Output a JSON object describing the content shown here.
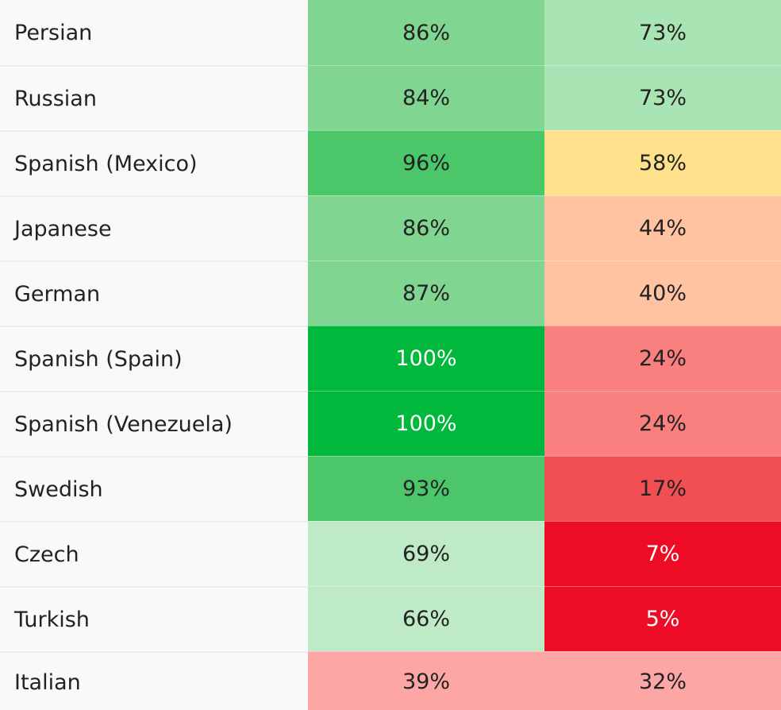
{
  "table": {
    "rows": [
      {
        "language": "Persian",
        "col1": {
          "value": "86%",
          "bg": "#80d690",
          "fg": "#222222"
        },
        "col2": {
          "value": "73%",
          "bg": "#a9e4b4",
          "fg": "#222222"
        }
      },
      {
        "language": "Russian",
        "col1": {
          "value": "84%",
          "bg": "#80d690",
          "fg": "#222222"
        },
        "col2": {
          "value": "73%",
          "bg": "#a9e4b4",
          "fg": "#222222"
        }
      },
      {
        "language": "Spanish (Mexico)",
        "col1": {
          "value": "96%",
          "bg": "#4bc76a",
          "fg": "#222222"
        },
        "col2": {
          "value": "58%",
          "bg": "#ffe18c",
          "fg": "#222222"
        }
      },
      {
        "language": "Japanese",
        "col1": {
          "value": "86%",
          "bg": "#80d690",
          "fg": "#222222"
        },
        "col2": {
          "value": "44%",
          "bg": "#ffc3a2",
          "fg": "#222222"
        }
      },
      {
        "language": "German",
        "col1": {
          "value": "87%",
          "bg": "#80d690",
          "fg": "#222222"
        },
        "col2": {
          "value": "40%",
          "bg": "#ffc3a2",
          "fg": "#222222"
        }
      },
      {
        "language": "Spanish (Spain)",
        "col1": {
          "value": "100%",
          "bg": "#00b83b",
          "fg": "#ffffff"
        },
        "col2": {
          "value": "24%",
          "bg": "#fa7f7f",
          "fg": "#222222"
        }
      },
      {
        "language": "Spanish (Venezuela)",
        "col1": {
          "value": "100%",
          "bg": "#00b83b",
          "fg": "#ffffff"
        },
        "col2": {
          "value": "24%",
          "bg": "#fa7f7f",
          "fg": "#222222"
        }
      },
      {
        "language": "Swedish",
        "col1": {
          "value": "93%",
          "bg": "#4bc76a",
          "fg": "#222222"
        },
        "col2": {
          "value": "17%",
          "bg": "#f24f54",
          "fg": "#222222"
        }
      },
      {
        "language": "Czech",
        "col1": {
          "value": "69%",
          "bg": "#bfeac7",
          "fg": "#222222"
        },
        "col2": {
          "value": "7%",
          "bg": "#ee0b25",
          "fg": "#ffffff"
        }
      },
      {
        "language": "Turkish",
        "col1": {
          "value": "66%",
          "bg": "#bfeac7",
          "fg": "#222222"
        },
        "col2": {
          "value": "5%",
          "bg": "#ee0b25",
          "fg": "#ffffff"
        }
      },
      {
        "language": "Italian",
        "col1": {
          "value": "39%",
          "bg": "#fca6a6",
          "fg": "#222222"
        },
        "col2": {
          "value": "32%",
          "bg": "#fca6a6",
          "fg": "#222222"
        }
      }
    ]
  }
}
